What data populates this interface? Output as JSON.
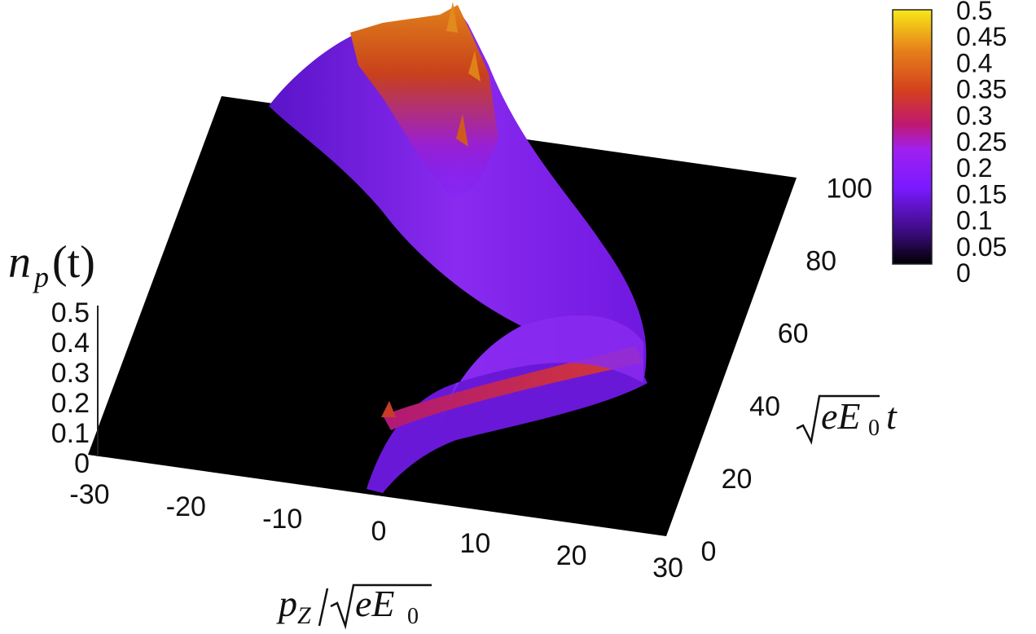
{
  "chart_data": {
    "type": "surface3d",
    "z_axis_label": {
      "base": "n",
      "sub": "p",
      "arg": "(t)"
    },
    "x_axis_label": {
      "num": "p",
      "num_sub": "Z",
      "den": "eE",
      "den_sub": "0"
    },
    "y_axis_label": {
      "sqrt": "eE",
      "sqrt_sub": "0",
      "var": "t"
    },
    "x_ticks": [
      "-30",
      "-20",
      "-10",
      "0",
      "10",
      "20",
      "30"
    ],
    "y_ticks": [
      "0",
      "20",
      "40",
      "60",
      "80",
      "100"
    ],
    "z_ticks": [
      "0",
      "0.1",
      "0.2",
      "0.3",
      "0.4",
      "0.5"
    ],
    "colorbar_ticks": [
      "0",
      "0.05",
      "0.1",
      "0.15",
      "0.2",
      "0.25",
      "0.3",
      "0.35",
      "0.4",
      "0.45",
      "0.5"
    ],
    "xlim": [
      -30,
      30
    ],
    "ylim": [
      0,
      110
    ],
    "zlim": [
      0,
      0.5
    ],
    "colorbar_range": [
      0,
      0.5
    ],
    "palette": [
      "#000000",
      "#3a0a7a",
      "#7a1aff",
      "#a020f0",
      "#c01870",
      "#d4401e",
      "#e6801a",
      "#f8e818"
    ],
    "ridge_peak_momentum": [
      {
        "t": 0,
        "pz": -1
      },
      {
        "t": 20,
        "pz": 5
      },
      {
        "t": 40,
        "pz": 15
      },
      {
        "t": 55,
        "pz": 19
      },
      {
        "t": 70,
        "pz": 12
      },
      {
        "t": 85,
        "pz": 3
      },
      {
        "t": 100,
        "pz": -2
      },
      {
        "t": 110,
        "pz": -4
      }
    ],
    "ridge_height": [
      {
        "t": 0,
        "n": 0.0
      },
      {
        "t": 10,
        "n": 0.12
      },
      {
        "t": 30,
        "n": 0.16
      },
      {
        "t": 55,
        "n": 0.16
      },
      {
        "t": 80,
        "n": 0.2
      },
      {
        "t": 100,
        "n": 0.3
      },
      {
        "t": 110,
        "n": 0.42
      }
    ]
  }
}
